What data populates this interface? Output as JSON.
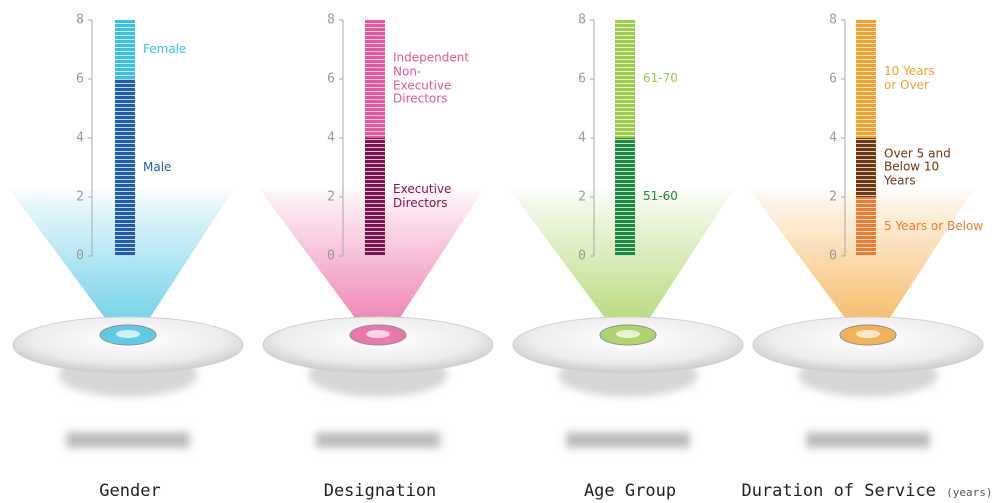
{
  "chart_data": [
    {
      "type": "bar",
      "stacked": true,
      "title": "Gender",
      "ylim": [
        0,
        8
      ],
      "yticks": [
        0,
        2,
        4,
        6,
        8
      ],
      "series": [
        {
          "name": "Male",
          "color": "#1f5fa8",
          "values": [
            6
          ]
        },
        {
          "name": "Female",
          "color": "#3bbfe0",
          "values": [
            2
          ]
        }
      ]
    },
    {
      "type": "bar",
      "stacked": true,
      "title": "Designation",
      "ylim": [
        0,
        8
      ],
      "yticks": [
        0,
        2,
        4,
        6,
        8
      ],
      "series": [
        {
          "name": "Executive Directors",
          "color": "#7a1450",
          "values": [
            4
          ]
        },
        {
          "name": "Independent Non-Executive Directors",
          "color": "#e8559b",
          "values": [
            4
          ]
        }
      ]
    },
    {
      "type": "bar",
      "stacked": true,
      "title": "Age Group",
      "ylim": [
        0,
        8
      ],
      "yticks": [
        0,
        2,
        4,
        6,
        8
      ],
      "series": [
        {
          "name": "51-60",
          "color": "#1e8a3e",
          "values": [
            4
          ]
        },
        {
          "name": "61-70",
          "color": "#9ccc4a",
          "values": [
            4
          ]
        }
      ]
    },
    {
      "type": "bar",
      "stacked": true,
      "title": "Duration of Service",
      "subtitle": "(years)",
      "ylim": [
        0,
        8
      ],
      "yticks": [
        0,
        2,
        4,
        6,
        8
      ],
      "series": [
        {
          "name": "5 Years or Below",
          "color": "#ee7b30",
          "values": [
            2
          ]
        },
        {
          "name": "Over 5 and Below 10 Years",
          "color": "#6b3a14",
          "values": [
            2
          ]
        },
        {
          "name": "10 Years or Over",
          "color": "#f2a22e",
          "values": [
            4
          ]
        }
      ]
    }
  ]
}
